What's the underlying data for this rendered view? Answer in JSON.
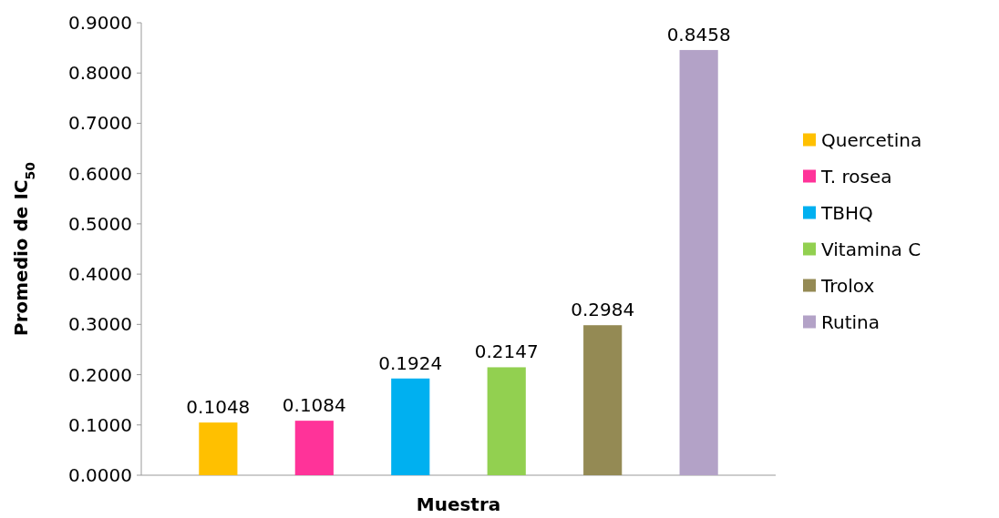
{
  "chart_data": {
    "type": "bar",
    "xlabel": "Muestra",
    "ylabel": "Promedio de IC$_{50}$",
    "categories": [
      null,
      null,
      null,
      null,
      null,
      null
    ],
    "series": [
      {
        "name": "Quercetina",
        "color": "#ffc000",
        "values": [
          0.1048,
          null,
          null,
          null,
          null,
          null
        ]
      },
      {
        "name": "T. rosea",
        "color": "#ff3399",
        "values": [
          null,
          0.1084,
          null,
          null,
          null,
          null
        ]
      },
      {
        "name": "TBHQ",
        "color": "#00b0f0",
        "values": [
          null,
          null,
          0.1924,
          null,
          null,
          null
        ]
      },
      {
        "name": "Vitamina C",
        "color": "#92d050",
        "values": [
          null,
          null,
          null,
          0.2147,
          null,
          null
        ]
      },
      {
        "name": "Trolox",
        "color": "#948a54",
        "values": [
          null,
          null,
          null,
          null,
          0.2984,
          null
        ]
      },
      {
        "name": "Rutina",
        "color": "#b3a2c7",
        "values": [
          null,
          null,
          null,
          null,
          null,
          0.8458
        ]
      }
    ],
    "ylim": [
      0,
      0.9
    ],
    "yticks": [
      {
        "value": 0,
        "label": "0.0000"
      },
      {
        "value": 0.1,
        "label": "0.1000"
      },
      {
        "value": 0.2,
        "label": "0.2000"
      },
      {
        "value": 0.3,
        "label": "0.3000"
      },
      {
        "value": 0.4,
        "label": "0.4000"
      },
      {
        "value": 0.5,
        "label": "0.5000"
      },
      {
        "value": 0.6,
        "label": "0.6000"
      },
      {
        "value": 0.7,
        "label": "0.7000"
      },
      {
        "value": 0.8,
        "label": "0.8000"
      },
      {
        "value": 0.9,
        "label": "0.9000"
      }
    ],
    "data_labels": true,
    "legend": "right",
    "grid": false
  }
}
